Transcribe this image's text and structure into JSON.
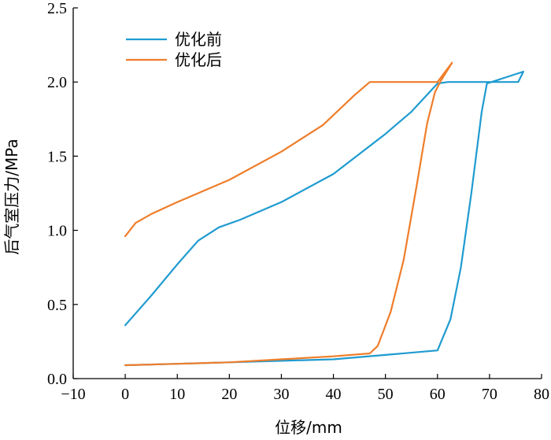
{
  "chart_data": {
    "type": "line",
    "xlabel": "位移/mm",
    "ylabel": "后气室压力/MPa",
    "xlim": [
      -10,
      80
    ],
    "ylim": [
      0.0,
      2.5
    ],
    "xticks": [
      "−10",
      "0",
      "10",
      "20",
      "30",
      "40",
      "50",
      "60",
      "70",
      "80"
    ],
    "xtick_values": [
      -10,
      0,
      10,
      20,
      30,
      40,
      50,
      60,
      70,
      80
    ],
    "yticks": [
      "0.0",
      "0.5",
      "1.0",
      "1.5",
      "2.0",
      "2.5"
    ],
    "ytick_values": [
      0.0,
      0.5,
      1.0,
      1.5,
      2.0,
      2.5
    ],
    "legend_position": "top-left",
    "grid": false,
    "series": [
      {
        "name": "优化前",
        "color": "#1f9bd0",
        "points": [
          [
            0,
            0.36
          ],
          [
            5,
            0.56
          ],
          [
            10,
            0.77
          ],
          [
            14,
            0.93
          ],
          [
            18,
            1.02
          ],
          [
            22,
            1.07
          ],
          [
            30,
            1.19
          ],
          [
            40,
            1.38
          ],
          [
            50,
            1.65
          ],
          [
            55,
            1.8
          ],
          [
            60,
            1.99
          ],
          [
            62,
            2.0
          ],
          [
            75.5,
            2.0
          ],
          [
            76.5,
            2.07
          ],
          [
            76.5,
            2.07
          ],
          [
            69.5,
            1.99
          ],
          [
            68.5,
            1.8
          ],
          [
            66.5,
            1.25
          ],
          [
            64.5,
            0.75
          ],
          [
            62.5,
            0.4
          ],
          [
            60,
            0.19
          ],
          [
            50,
            0.16
          ],
          [
            40,
            0.13
          ],
          [
            30,
            0.12
          ],
          [
            20,
            0.11
          ],
          [
            10,
            0.1
          ],
          [
            0,
            0.09
          ]
        ]
      },
      {
        "name": "优化后",
        "color": "#ef7d2a",
        "points": [
          [
            0,
            0.96
          ],
          [
            2,
            1.05
          ],
          [
            5,
            1.11
          ],
          [
            10,
            1.19
          ],
          [
            20,
            1.34
          ],
          [
            30,
            1.53
          ],
          [
            38,
            1.71
          ],
          [
            44,
            1.91
          ],
          [
            47,
            2.0
          ],
          [
            60,
            2.0
          ],
          [
            62.8,
            2.13
          ],
          [
            60.5,
            2.0
          ],
          [
            59.5,
            1.93
          ],
          [
            58,
            1.72
          ],
          [
            56,
            1.3
          ],
          [
            53.5,
            0.8
          ],
          [
            51,
            0.45
          ],
          [
            48.5,
            0.22
          ],
          [
            47,
            0.17
          ],
          [
            40,
            0.15
          ],
          [
            30,
            0.13
          ],
          [
            20,
            0.11
          ],
          [
            10,
            0.1
          ],
          [
            0,
            0.09
          ]
        ]
      }
    ]
  }
}
